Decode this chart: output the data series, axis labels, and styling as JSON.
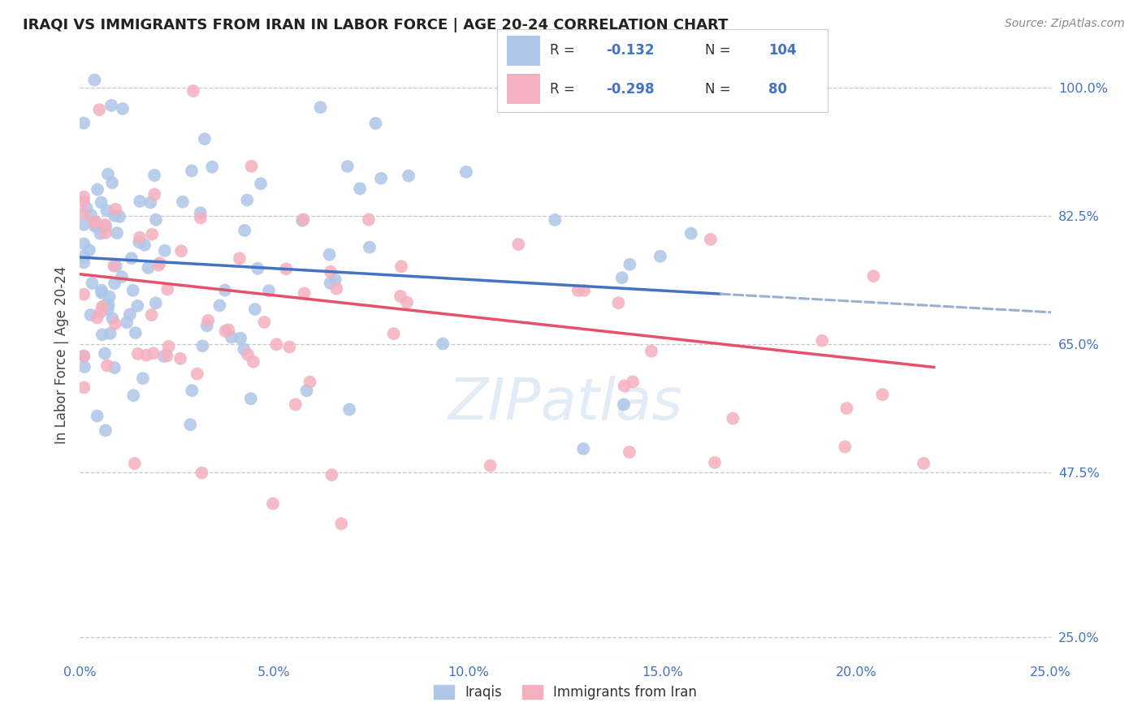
{
  "title": "IRAQI VS IMMIGRANTS FROM IRAN IN LABOR FORCE | AGE 20-24 CORRELATION CHART",
  "source_text": "Source: ZipAtlas.com",
  "ylabel": "In Labor Force | Age 20-24",
  "legend_bottom": [
    "Iraqis",
    "Immigrants from Iran"
  ],
  "iraqis_R": "-0.132",
  "iraqis_N": "104",
  "iran_R": "-0.298",
  "iran_N": "80",
  "x_ticks": [
    "0.0%",
    "5.0%",
    "10.0%",
    "15.0%",
    "20.0%",
    "25.0%"
  ],
  "x_tick_vals": [
    0.0,
    0.05,
    0.1,
    0.15,
    0.2,
    0.25
  ],
  "y_ticks_right": [
    "100.0%",
    "82.5%",
    "65.0%",
    "47.5%",
    "25.0%"
  ],
  "y_tick_vals_right": [
    1.0,
    0.825,
    0.65,
    0.475,
    0.25
  ],
  "xlim": [
    0.0,
    0.25
  ],
  "ylim": [
    0.22,
    1.05
  ],
  "background_color": "#ffffff",
  "grid_color": "#c8c8c8",
  "iraqis_color": "#aec6e8",
  "iran_color": "#f4b0be",
  "iraqis_line_color": "#4472c4",
  "iran_line_color": "#e8506a",
  "trendline_extend_color": "#9bafd4",
  "watermark_color": "#d0dff0",
  "title_color": "#222222",
  "axis_color": "#4472c4",
  "iraqi_trend_x0": 0.0,
  "iraqi_trend_y0": 0.768,
  "iraqi_trend_x1": 0.165,
  "iraqi_trend_y1": 0.718,
  "iraqi_trend_x2": 0.25,
  "iraqi_trend_y2": 0.693,
  "iran_trend_x0": 0.0,
  "iran_trend_y0": 0.745,
  "iran_trend_x1": 0.22,
  "iran_trend_y1": 0.618
}
